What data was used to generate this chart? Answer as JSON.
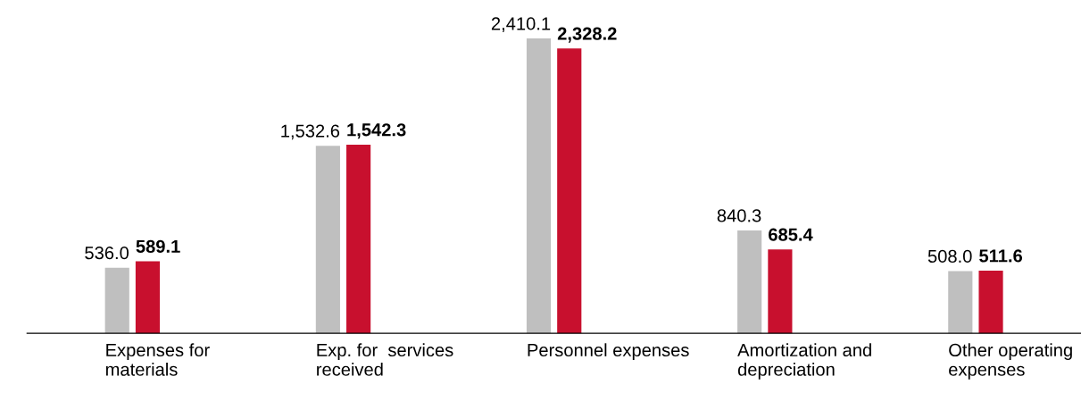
{
  "chart_data": {
    "type": "bar",
    "categories": [
      "Expenses for\nmaterials",
      "Exp. for  services\nreceived",
      "Personnel expenses",
      "Amortization and\ndepreciation",
      "Other operating\nexpenses"
    ],
    "series": [
      {
        "color": "#bfbfbf",
        "values": [
          536.0,
          1532.6,
          2410.1,
          840.3,
          508.0
        ],
        "value_labels": [
          "536.0",
          "1,532.6",
          "2,410.1",
          "840.3",
          "508.0"
        ]
      },
      {
        "color": "#c8102e",
        "values": [
          589.1,
          1542.3,
          2328.2,
          685.4,
          511.6
        ],
        "value_labels": [
          "589.1",
          "1,542.3",
          "2,328.2",
          "685.4",
          "511.6"
        ]
      }
    ],
    "tick_labels": "x",
    "grid": false,
    "legend": false
  }
}
